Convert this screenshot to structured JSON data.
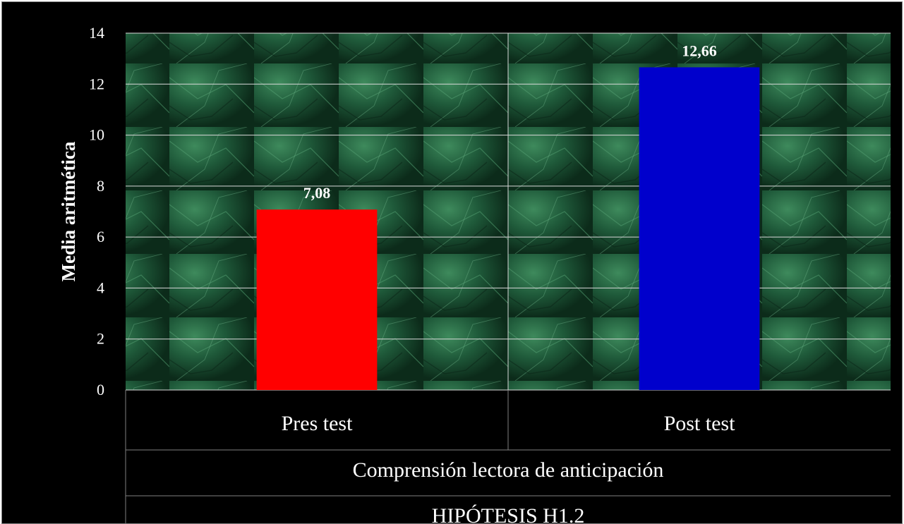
{
  "chart_data": {
    "type": "bar",
    "categories": [
      "Pres test",
      "Post test"
    ],
    "values": [
      7.08,
      12.66
    ],
    "value_labels": [
      "7,08",
      "12,66"
    ],
    "bar_colors": [
      "#ff0000",
      "#0000cc"
    ],
    "title": "",
    "xlabel": "Comprensión lectora de anticipación",
    "xlabel2": "HIPÓTESIS H1.2",
    "ylabel": "Media aritmética",
    "ylim": [
      0,
      14
    ],
    "yticks": [
      0,
      2,
      4,
      6,
      8,
      10,
      12,
      14
    ],
    "grid": true,
    "plot_background": "#1f5a3a"
  }
}
